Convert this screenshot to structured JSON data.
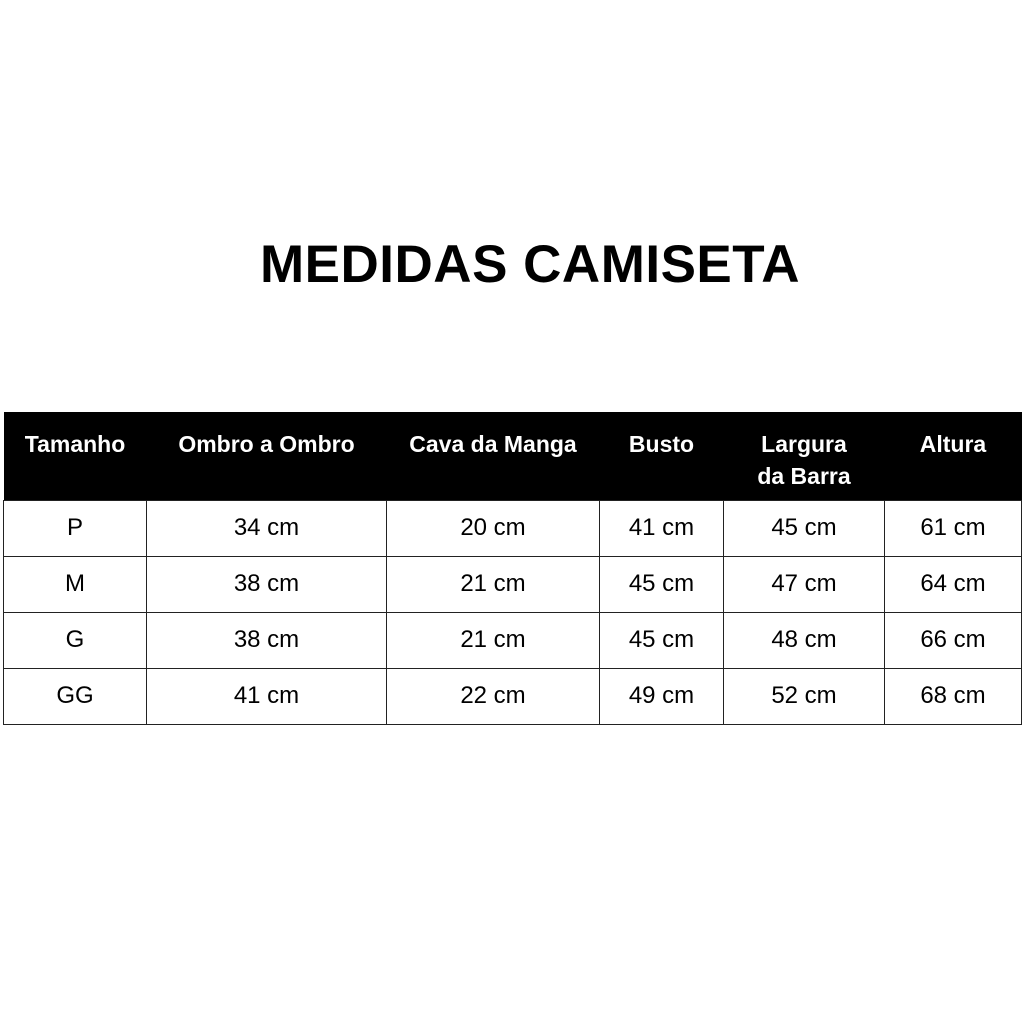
{
  "title": "MEDIDAS CAMISETA",
  "table": {
    "headers": [
      "Tamanho",
      "Ombro a Ombro",
      "Cava da Manga",
      "Busto",
      "Largura da Barra",
      "Altura"
    ],
    "rows": [
      [
        "P",
        "34 cm",
        "20 cm",
        "41 cm",
        "45 cm",
        "61 cm"
      ],
      [
        "M",
        "38 cm",
        "21 cm",
        "45 cm",
        "47 cm",
        "64 cm"
      ],
      [
        "G",
        "38 cm",
        "21 cm",
        "45 cm",
        "48 cm",
        "66 cm"
      ],
      [
        "GG",
        "41 cm",
        "22 cm",
        "49 cm",
        "52 cm",
        "68 cm"
      ]
    ]
  }
}
